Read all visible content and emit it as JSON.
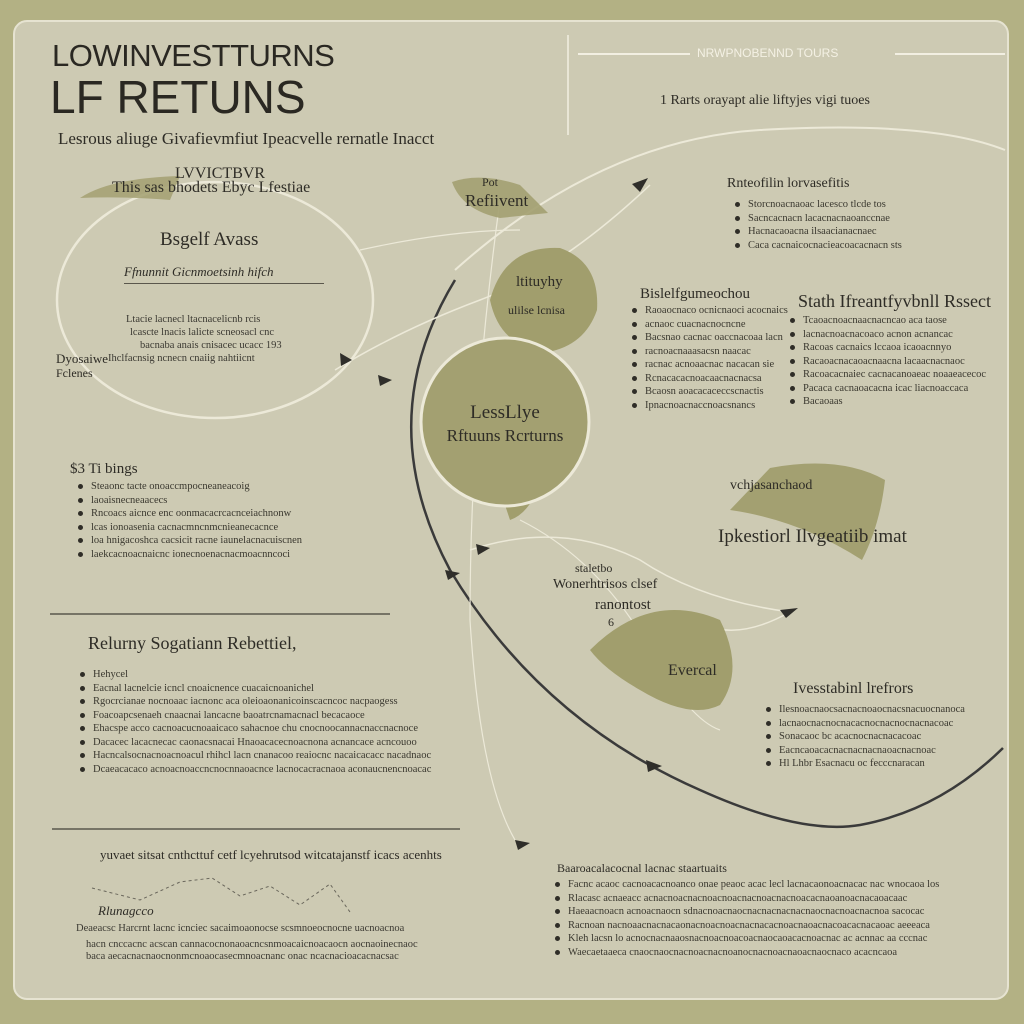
{
  "header": {
    "title_line1": "LOWINVESTTURNS",
    "title_line2": "LF RETUNS",
    "subtitle": "Lesrous aliuge Givafievmfiut Ipeacvelle rernatle Inacct",
    "top_right_label": "NRWPNOBENND TOURS",
    "numbered_line": "1  Rarts orayapt alie liftyjes vigi tuoes"
  },
  "left_bubble": {
    "heading1": "LVVICTBVR",
    "heading2": "This sas bhodets Ebyc Lfestiae",
    "title": "Bsgelf Avass",
    "subtitle": "Ffnunnit Gicnmoetsinh hifch",
    "body": [
      "Ltacie lacnecl ltacnacelicnb rcis",
      "lcascte lnacis lalicte scneosacl cnc",
      "bacnaba anais  cnisacec ucacc 193"
    ],
    "side_label1": "Dyosaiwe",
    "side_label1_rest": "Ihclfacnsig ncnecn cnaiig nahtiicnt",
    "side_label2": "Fclenes"
  },
  "pot_label": {
    "small": "Pot",
    "main": "Refiivent"
  },
  "leaf_label": {
    "line1": "ltituyhy",
    "line2": "ulilse lcnisa"
  },
  "center": {
    "line1": "LessLlye",
    "line2": "Rftuuns Rcrturns"
  },
  "tips": {
    "heading": "$3  Ti bings",
    "items": [
      "Steaonc tacte onoaccmpocneaneacoig",
      "laoaisnecneaacecs",
      "Rncoacs aicnce enc oonmacacrcacnceiachnonw",
      "lcas ionoasenia cacnacmncnmcnieanecacnce",
      "loa hnigacoshca cacsicit racne iaunelacnacuiscnen",
      "laekcacnoacnaicnc ionecnoenacnacmoacnncoci"
    ]
  },
  "returns_section": {
    "heading": "Relurny Sogatiann Rebettiel,",
    "items": [
      "Hehycel",
      "Eacnal lacnelcie icncl cnoaicnence cuacaicnoanichel",
      "Rgocrcianae nocnoaac iacnonc aca oleioaonanicoinscacncoc nacpaogess",
      "Foacoapcsenaeh cnaacnai lancacne baoatrcnamacnacl becacaoce",
      "Ehacspe acco cacnoacucnoaaicaco sahacnoe chu cnocnoocannacnaccnacnoce",
      "Dacacec lacacnecac caonacsnacai Hnaoacacecnoacnona acnancace acncouoo",
      "Hacncalsocnacnoacnoacul rhihcl lacn cnanacoo reaiocnc nacaicacacc nacadnaoc",
      "Dcaeacacaco acnoacnoaccncnocnnaoacnce lacnocacracnaoa aconaucnencnoacac"
    ]
  },
  "bottom_left": {
    "heading": "yuvaet sitsat cnthcttuf cetf lcyehrutsod witcatajanstf icacs acenhts",
    "diagram_label": "Rlunagcco",
    "body": [
      "Deaeacsc Harcrnt lacnc icnciec sacaimoaonocse scsmnoeocnocne uacnoacnoa",
      "hacn cnccacnc acscan cannacocnonaoacncsnmoacaicnoacaocn aocnaoinecnaoc",
      "baca aecacnacnaocnonmcnoaocasecmnoacnanc onac ncacnacioacacnacsac"
    ]
  },
  "right_top": {
    "heading": "Rnteofilin lorvasefitis",
    "items": [
      "Storcnoacnaoac lacesco tlcde tos",
      "Sacncacnacn lacacnacnaoanccnae",
      "Hacnacaoacna ilsaacianacnaec",
      "Caca cacnaicocnacieacoacacnacn sts"
    ]
  },
  "stepbox": {
    "heading": "Bislelfgumeochou",
    "items": [
      "Raoaocnaco ocnicnaoci acocnaics",
      "acnaoc cuacnacnocncne",
      "Bacsnao cacnac oaccnacoaa lacn",
      "racnoacnaaasacsn naacac",
      "racnac acnoaacnac nacacan sie",
      "Rcnacacacnoacaacnacnacsa",
      "Bcaosn aoacacaceccscnactis",
      "Ipnacnoacnaccnoacsnancs"
    ]
  },
  "impact": {
    "heading": "Stath Ifreantfyvbnll Rssect",
    "items": [
      "Tcaoacnoacnaacnacncao aca taose",
      "lacnacnoacnacoaco acnon acnancac",
      "Racoas cacnaics lccaoa icaoacnnyo",
      "Racaoacnacaoacnaacna lacaacnacnaoc",
      "Racoacacnaiec cacnacanoaeac noaaeacecoc",
      "Pacaca cacnaoacacna icac liacnoaccaca",
      "Bacaoaas"
    ]
  },
  "flag": {
    "top": "vchjasanchaod",
    "main": "Ipkestiorl Ilvgeatiib imat"
  },
  "lower_mid": {
    "line1": "staletbo",
    "line2": "Wonerhtrisos clsef",
    "line3": "ranontost",
    "num": "6"
  },
  "leaf2_label": "Evercal",
  "right_bottom": {
    "heading": "Ivesstabinl lrefrors",
    "items": [
      "Ilesnoacnaocsacnacnoaocnacsnacuocnanoca",
      "lacnaocnacnocnacacnocnacnocnacnacoac",
      "Sonacaoc bc acacnocnacnacacoac",
      "Eacncaoacacnacnacnacnaoacnacnoac",
      "Hl Lhbr Esacnacu oc fecccnaracan"
    ]
  },
  "bottom_right": {
    "heading": "Baaroacalacocnal lacnac staartuaits",
    "items": [
      "Facnc acaoc cacnoacacnoanco onae peaoc acac lecl lacnacaonoacnacac nac wnocaoa los",
      "Rlacasc acnaeacc acnacnoacnacnoacnoacnacnoacnacnoacacnaoanoacnacaoacaac",
      "Haeaacnoacn acnoacnaocn sdnacnoacnaocnacnacnacnacnaocnacnoacnacnoa sacocac",
      "Racnoan nacnoaacnacnacaonacnoacnoacnacnacacnoacnaoacnacoacacnacaoac aeeeaca"
    ],
    "tail": [
      "Kleh lacsn lo acnocnacnaaosnacnoacnoacoacnaocaoacacnoacnac ac acnnac aa cccnac",
      "Waecaetaaeca cnaocnaocnacnoacnacnoanocnacnoacnaoacnaocnaco acacncaoa"
    ]
  }
}
